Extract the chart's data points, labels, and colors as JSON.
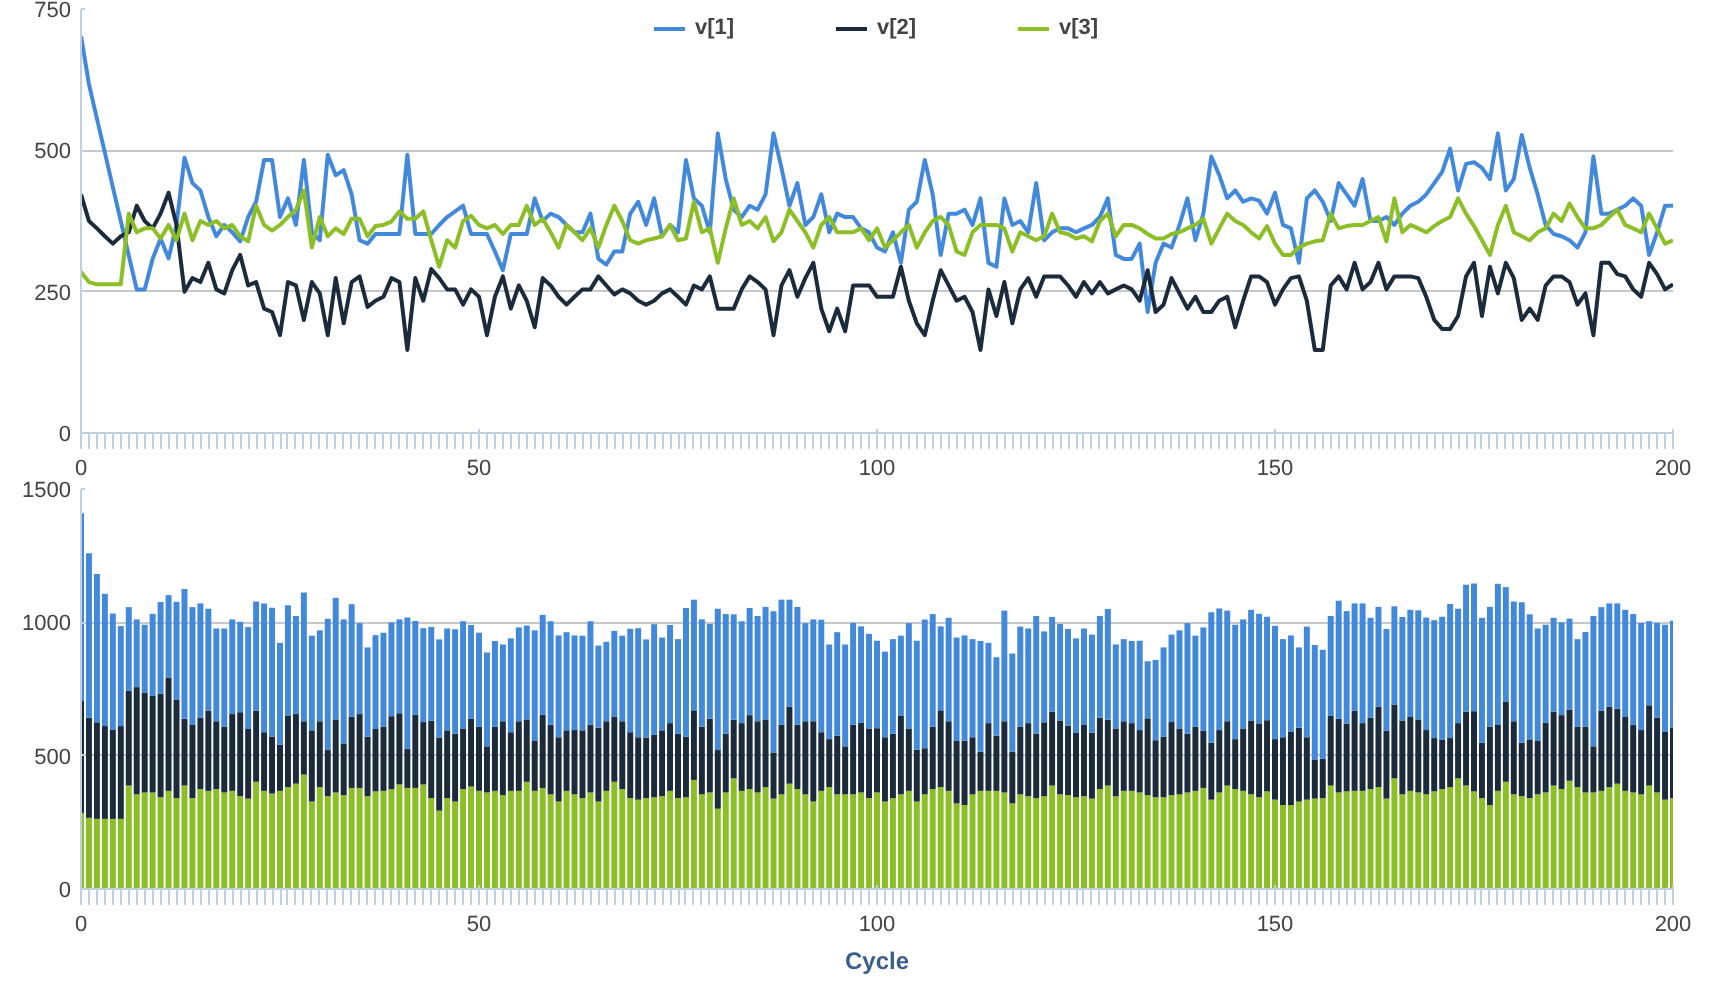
{
  "chart_data": [
    {
      "type": "line",
      "xlim": [
        0,
        200
      ],
      "xticks": [
        0,
        50,
        100,
        150,
        200
      ],
      "ylim": [
        0,
        750
      ],
      "yticks": [
        0,
        250,
        500,
        750
      ],
      "grid": "y",
      "legend": "top",
      "x": [
        0,
        1,
        2,
        3,
        4,
        5,
        6,
        7,
        8,
        9,
        10,
        11,
        12,
        13,
        14,
        15,
        16,
        17,
        18,
        19,
        20,
        21,
        22,
        23,
        24,
        25,
        26,
        27,
        28,
        29,
        30,
        31,
        32,
        33,
        34,
        35,
        36,
        37,
        38,
        39,
        40,
        41,
        42,
        43,
        44,
        45,
        46,
        47,
        48,
        49,
        50,
        51,
        52,
        53,
        54,
        55,
        56,
        57,
        58,
        59,
        60,
        61,
        62,
        63,
        64,
        65,
        66,
        67,
        68,
        69,
        70,
        71,
        72,
        73,
        74,
        75,
        76,
        77,
        78,
        79,
        80,
        81,
        82,
        83,
        84,
        85,
        86,
        87,
        88,
        89,
        90,
        91,
        92,
        93,
        94,
        95,
        96,
        97,
        98,
        99,
        100,
        101,
        102,
        103,
        104,
        105,
        106,
        107,
        108,
        109,
        110,
        111,
        112,
        113,
        114,
        115,
        116,
        117,
        118,
        119,
        120,
        121,
        122,
        123,
        124,
        125,
        126,
        127,
        128,
        129,
        130,
        131,
        132,
        133,
        134,
        135,
        136,
        137,
        138,
        139,
        140,
        141,
        142,
        143,
        144,
        145,
        146,
        147,
        148,
        149,
        150,
        151,
        152,
        153,
        154,
        155,
        156,
        157,
        158,
        159,
        160,
        161,
        162,
        163,
        164,
        165,
        166,
        167,
        168,
        169,
        170,
        171,
        172,
        173,
        174,
        175,
        176,
        177,
        178,
        179,
        180,
        181,
        182,
        183,
        184,
        185,
        186,
        187,
        188,
        189,
        190,
        191,
        192,
        193,
        194,
        195,
        196,
        197,
        198,
        199,
        200
      ],
      "series": [
        {
          "name": "v[1]",
          "color": "#4289dc",
          "values": [
            702,
            617,
            556,
            496,
            435,
            375,
            314,
            254,
            254,
            308,
            344,
            309,
            368,
            487,
            442,
            429,
            382,
            348,
            368,
            355,
            339,
            382,
            409,
            483,
            483,
            382,
            415,
            368,
            483,
            355,
            341,
            492,
            456,
            465,
            422,
            341,
            335,
            352,
            352,
            352,
            352,
            492,
            352,
            352,
            352,
            368,
            382,
            392,
            402,
            352,
            352,
            352,
            321,
            288,
            352,
            352,
            352,
            415,
            375,
            388,
            382,
            368,
            355,
            355,
            388,
            308,
            298,
            321,
            321,
            388,
            409,
            368,
            415,
            348,
            368,
            355,
            483,
            415,
            402,
            355,
            530,
            449,
            395,
            382,
            402,
            395,
            422,
            530,
            469,
            402,
            442,
            368,
            382,
            422,
            355,
            388,
            382,
            382,
            362,
            355,
            328,
            321,
            355,
            301,
            395,
            409,
            483,
            422,
            315,
            388,
            388,
            395,
            368,
            415,
            301,
            294,
            415,
            368,
            375,
            355,
            442,
            341,
            355,
            362,
            362,
            355,
            362,
            368,
            382,
            415,
            315,
            308,
            308,
            335,
            214,
            301,
            335,
            328,
            368,
            415,
            341,
            388,
            489,
            456,
            415,
            429,
            409,
            415,
            411,
            388,
            425,
            368,
            362,
            301,
            415,
            429,
            409,
            375,
            442,
            422,
            402,
            449,
            375,
            375,
            382,
            368,
            388,
            402,
            409,
            422,
            442,
            462,
            503,
            429,
            476,
            479,
            469,
            449,
            530,
            429,
            449,
            527,
            469,
            422,
            368,
            352,
            348,
            341,
            328,
            355,
            489,
            388,
            388,
            395,
            402,
            415,
            402,
            315,
            355,
            402,
            402
          ]
        },
        {
          "name": "v[2]",
          "color": "#1c2b3c",
          "values": [
            422,
            375,
            362,
            348,
            335,
            348,
            355,
            402,
            375,
            362,
            388,
            425,
            368,
            250,
            274,
            267,
            301,
            254,
            247,
            288,
            315,
            261,
            267,
            220,
            214,
            173,
            267,
            261,
            200,
            267,
            247,
            173,
            274,
            194,
            267,
            277,
            223,
            234,
            241,
            274,
            267,
            147,
            274,
            234,
            290,
            274,
            254,
            254,
            227,
            254,
            241,
            173,
            241,
            277,
            220,
            261,
            234,
            187,
            274,
            261,
            241,
            227,
            241,
            254,
            254,
            277,
            261,
            245,
            254,
            247,
            234,
            227,
            234,
            247,
            254,
            241,
            227,
            261,
            254,
            277,
            220,
            220,
            220,
            254,
            277,
            267,
            254,
            173,
            261,
            288,
            241,
            274,
            301,
            220,
            180,
            220,
            180,
            261,
            261,
            261,
            241,
            241,
            241,
            294,
            234,
            194,
            173,
            234,
            288,
            261,
            234,
            241,
            214,
            147,
            254,
            207,
            267,
            194,
            254,
            274,
            241,
            277,
            277,
            277,
            261,
            241,
            267,
            247,
            267,
            247,
            254,
            261,
            254,
            234,
            288,
            214,
            227,
            274,
            247,
            220,
            241,
            214,
            214,
            234,
            241,
            187,
            234,
            277,
            277,
            267,
            227,
            254,
            274,
            277,
            234,
            147,
            147,
            261,
            277,
            254,
            301,
            254,
            267,
            301,
            254,
            277,
            277,
            277,
            274,
            241,
            200,
            184,
            184,
            207,
            277,
            301,
            207,
            294,
            247,
            301,
            274,
            200,
            220,
            200,
            261,
            277,
            277,
            267,
            227,
            247,
            173,
            301,
            301,
            281,
            277,
            254,
            241,
            301,
            281,
            254,
            263
          ]
        },
        {
          "name": "v[3]",
          "color": "#8cbf26",
          "values": [
            285,
            267,
            263,
            263,
            263,
            263,
            388,
            355,
            362,
            362,
            344,
            368,
            341,
            388,
            341,
            375,
            368,
            375,
            362,
            368,
            348,
            339,
            402,
            368,
            358,
            368,
            382,
            395,
            429,
            328,
            382,
            348,
            362,
            352,
            379,
            379,
            348,
            366,
            368,
            374,
            392,
            379,
            379,
            392,
            341,
            294,
            341,
            328,
            375,
            384,
            368,
            362,
            368,
            352,
            368,
            368,
            402,
            368,
            379,
            355,
            328,
            368,
            355,
            341,
            362,
            328,
            368,
            402,
            375,
            341,
            335,
            341,
            344,
            348,
            368,
            341,
            344,
            409,
            355,
            362,
            301,
            362,
            415,
            368,
            375,
            362,
            382,
            339,
            355,
            395,
            375,
            355,
            328,
            368,
            382,
            355,
            355,
            355,
            362,
            341,
            362,
            328,
            341,
            355,
            368,
            328,
            355,
            375,
            382,
            368,
            321,
            315,
            355,
            368,
            368,
            368,
            362,
            321,
            355,
            348,
            341,
            348,
            388,
            355,
            352,
            344,
            348,
            339,
            375,
            388,
            348,
            368,
            368,
            362,
            352,
            344,
            344,
            352,
            355,
            362,
            368,
            379,
            335,
            362,
            388,
            375,
            368,
            355,
            344,
            366,
            335,
            315,
            315,
            328,
            335,
            339,
            341,
            388,
            362,
            366,
            368,
            368,
            375,
            382,
            339,
            415,
            355,
            368,
            362,
            355,
            366,
            375,
            382,
            415,
            388,
            366,
            341,
            315,
            368,
            402,
            355,
            348,
            341,
            355,
            362,
            388,
            375,
            406,
            382,
            362,
            362,
            368,
            382,
            395,
            368,
            362,
            355,
            388,
            362,
            335,
            341
          ]
        }
      ]
    },
    {
      "type": "bar",
      "stacked": true,
      "xlim": [
        0,
        200
      ],
      "xticks": [
        0,
        50,
        100,
        150,
        200
      ],
      "ylim": [
        0,
        1500
      ],
      "yticks": [
        0,
        500,
        1000,
        1500
      ],
      "grid": "y",
      "xlabel": "Cycle",
      "x": [
        0,
        1,
        2,
        3,
        4,
        5,
        6,
        7,
        8,
        9,
        10,
        11,
        12,
        13,
        14,
        15,
        16,
        17,
        18,
        19,
        20,
        21,
        22,
        23,
        24,
        25,
        26,
        27,
        28,
        29,
        30,
        31,
        32,
        33,
        34,
        35,
        36,
        37,
        38,
        39,
        40,
        41,
        42,
        43,
        44,
        45,
        46,
        47,
        48,
        49,
        50,
        51,
        52,
        53,
        54,
        55,
        56,
        57,
        58,
        59,
        60,
        61,
        62,
        63,
        64,
        65,
        66,
        67,
        68,
        69,
        70,
        71,
        72,
        73,
        74,
        75,
        76,
        77,
        78,
        79,
        80,
        81,
        82,
        83,
        84,
        85,
        86,
        87,
        88,
        89,
        90,
        91,
        92,
        93,
        94,
        95,
        96,
        97,
        98,
        99,
        100,
        101,
        102,
        103,
        104,
        105,
        106,
        107,
        108,
        109,
        110,
        111,
        112,
        113,
        114,
        115,
        116,
        117,
        118,
        119,
        120,
        121,
        122,
        123,
        124,
        125,
        126,
        127,
        128,
        129,
        130,
        131,
        132,
        133,
        134,
        135,
        136,
        137,
        138,
        139,
        140,
        141,
        142,
        143,
        144,
        145,
        146,
        147,
        148,
        149,
        150,
        151,
        152,
        153,
        154,
        155,
        156,
        157,
        158,
        159,
        160,
        161,
        162,
        163,
        164,
        165,
        166,
        167,
        168,
        169,
        170,
        171,
        172,
        173,
        174,
        175,
        176,
        177,
        178,
        179,
        180,
        181,
        182,
        183,
        184,
        185,
        186,
        187,
        188,
        189,
        190,
        191,
        192,
        193,
        194,
        195,
        196,
        197,
        198,
        199,
        200
      ],
      "series": [
        {
          "color": "#8cbf26",
          "values": [
            285,
            267,
            263,
            263,
            263,
            263,
            388,
            355,
            362,
            362,
            344,
            368,
            341,
            388,
            341,
            375,
            368,
            375,
            362,
            368,
            348,
            339,
            402,
            368,
            358,
            368,
            382,
            395,
            429,
            328,
            382,
            348,
            362,
            352,
            379,
            379,
            348,
            366,
            368,
            374,
            392,
            379,
            379,
            392,
            341,
            294,
            341,
            328,
            375,
            384,
            368,
            362,
            368,
            352,
            368,
            368,
            402,
            368,
            379,
            355,
            328,
            368,
            355,
            341,
            362,
            328,
            368,
            402,
            375,
            341,
            335,
            341,
            344,
            348,
            368,
            341,
            344,
            409,
            355,
            362,
            301,
            362,
            415,
            368,
            375,
            362,
            382,
            339,
            355,
            395,
            375,
            355,
            328,
            368,
            382,
            355,
            355,
            355,
            362,
            341,
            362,
            328,
            341,
            355,
            368,
            328,
            355,
            375,
            382,
            368,
            321,
            315,
            355,
            368,
            368,
            368,
            362,
            321,
            355,
            348,
            341,
            348,
            388,
            355,
            352,
            344,
            348,
            339,
            375,
            388,
            348,
            368,
            368,
            362,
            352,
            344,
            344,
            352,
            355,
            362,
            368,
            379,
            335,
            362,
            388,
            375,
            368,
            355,
            344,
            366,
            335,
            315,
            315,
            328,
            335,
            339,
            341,
            388,
            362,
            366,
            368,
            368,
            375,
            382,
            339,
            415,
            355,
            368,
            362,
            355,
            366,
            375,
            382,
            415,
            388,
            366,
            341,
            315,
            368,
            402,
            355,
            348,
            341,
            355,
            362,
            388,
            375,
            406,
            382,
            362,
            362,
            368,
            382,
            395,
            368,
            362,
            355,
            388,
            362,
            335,
            341
          ]
        },
        {
          "color": "#1c2b3c",
          "values": [
            422,
            375,
            362,
            348,
            335,
            348,
            355,
            402,
            375,
            362,
            388,
            425,
            368,
            250,
            274,
            267,
            301,
            254,
            247,
            288,
            315,
            261,
            267,
            220,
            214,
            173,
            267,
            261,
            200,
            267,
            247,
            173,
            274,
            194,
            267,
            277,
            223,
            234,
            241,
            274,
            267,
            147,
            274,
            234,
            290,
            274,
            254,
            254,
            227,
            254,
            241,
            173,
            241,
            277,
            220,
            261,
            234,
            187,
            274,
            261,
            241,
            227,
            241,
            254,
            254,
            277,
            261,
            245,
            254,
            247,
            234,
            227,
            234,
            247,
            254,
            241,
            227,
            261,
            254,
            277,
            220,
            220,
            220,
            254,
            277,
            267,
            254,
            173,
            261,
            288,
            241,
            274,
            301,
            220,
            180,
            220,
            180,
            261,
            261,
            261,
            241,
            241,
            241,
            294,
            234,
            194,
            173,
            234,
            288,
            261,
            234,
            241,
            214,
            147,
            254,
            207,
            267,
            194,
            254,
            274,
            241,
            277,
            277,
            277,
            261,
            241,
            267,
            247,
            267,
            247,
            254,
            261,
            254,
            234,
            288,
            214,
            227,
            274,
            247,
            220,
            241,
            214,
            214,
            234,
            241,
            187,
            234,
            277,
            277,
            267,
            227,
            254,
            274,
            277,
            234,
            147,
            147,
            261,
            277,
            254,
            301,
            254,
            267,
            301,
            254,
            277,
            277,
            277,
            274,
            241,
            200,
            184,
            184,
            207,
            277,
            301,
            207,
            294,
            247,
            301,
            274,
            200,
            220,
            200,
            261,
            277,
            277,
            267,
            227,
            247,
            173,
            301,
            301,
            281,
            277,
            254,
            241,
            301,
            281,
            254,
            263
          ]
        },
        {
          "color": "#4289dc",
          "values": [
            702,
            617,
            556,
            496,
            435,
            375,
            314,
            254,
            254,
            308,
            344,
            309,
            368,
            487,
            442,
            429,
            382,
            348,
            368,
            355,
            339,
            382,
            409,
            483,
            483,
            382,
            415,
            368,
            483,
            355,
            341,
            492,
            456,
            465,
            422,
            341,
            335,
            352,
            352,
            352,
            352,
            492,
            352,
            352,
            352,
            368,
            382,
            392,
            402,
            352,
            352,
            352,
            321,
            288,
            352,
            352,
            352,
            415,
            375,
            388,
            382,
            368,
            355,
            355,
            388,
            308,
            298,
            321,
            321,
            388,
            409,
            368,
            415,
            348,
            368,
            355,
            483,
            415,
            402,
            355,
            530,
            449,
            395,
            382,
            402,
            395,
            422,
            530,
            469,
            402,
            442,
            368,
            382,
            422,
            355,
            388,
            382,
            382,
            362,
            355,
            328,
            321,
            355,
            301,
            395,
            409,
            483,
            422,
            315,
            388,
            388,
            395,
            368,
            415,
            301,
            294,
            415,
            368,
            375,
            355,
            442,
            341,
            355,
            362,
            362,
            355,
            362,
            368,
            382,
            415,
            315,
            308,
            308,
            335,
            214,
            301,
            335,
            328,
            368,
            415,
            341,
            388,
            489,
            456,
            415,
            429,
            409,
            415,
            411,
            388,
            425,
            368,
            362,
            301,
            415,
            429,
            409,
            375,
            442,
            422,
            402,
            449,
            375,
            375,
            382,
            368,
            388,
            402,
            409,
            422,
            442,
            462,
            503,
            429,
            476,
            479,
            469,
            449,
            530,
            429,
            449,
            527,
            469,
            422,
            368,
            352,
            348,
            341,
            328,
            355,
            489,
            388,
            388,
            395,
            402,
            415,
            402,
            315,
            355,
            402,
            402
          ]
        }
      ]
    }
  ]
}
